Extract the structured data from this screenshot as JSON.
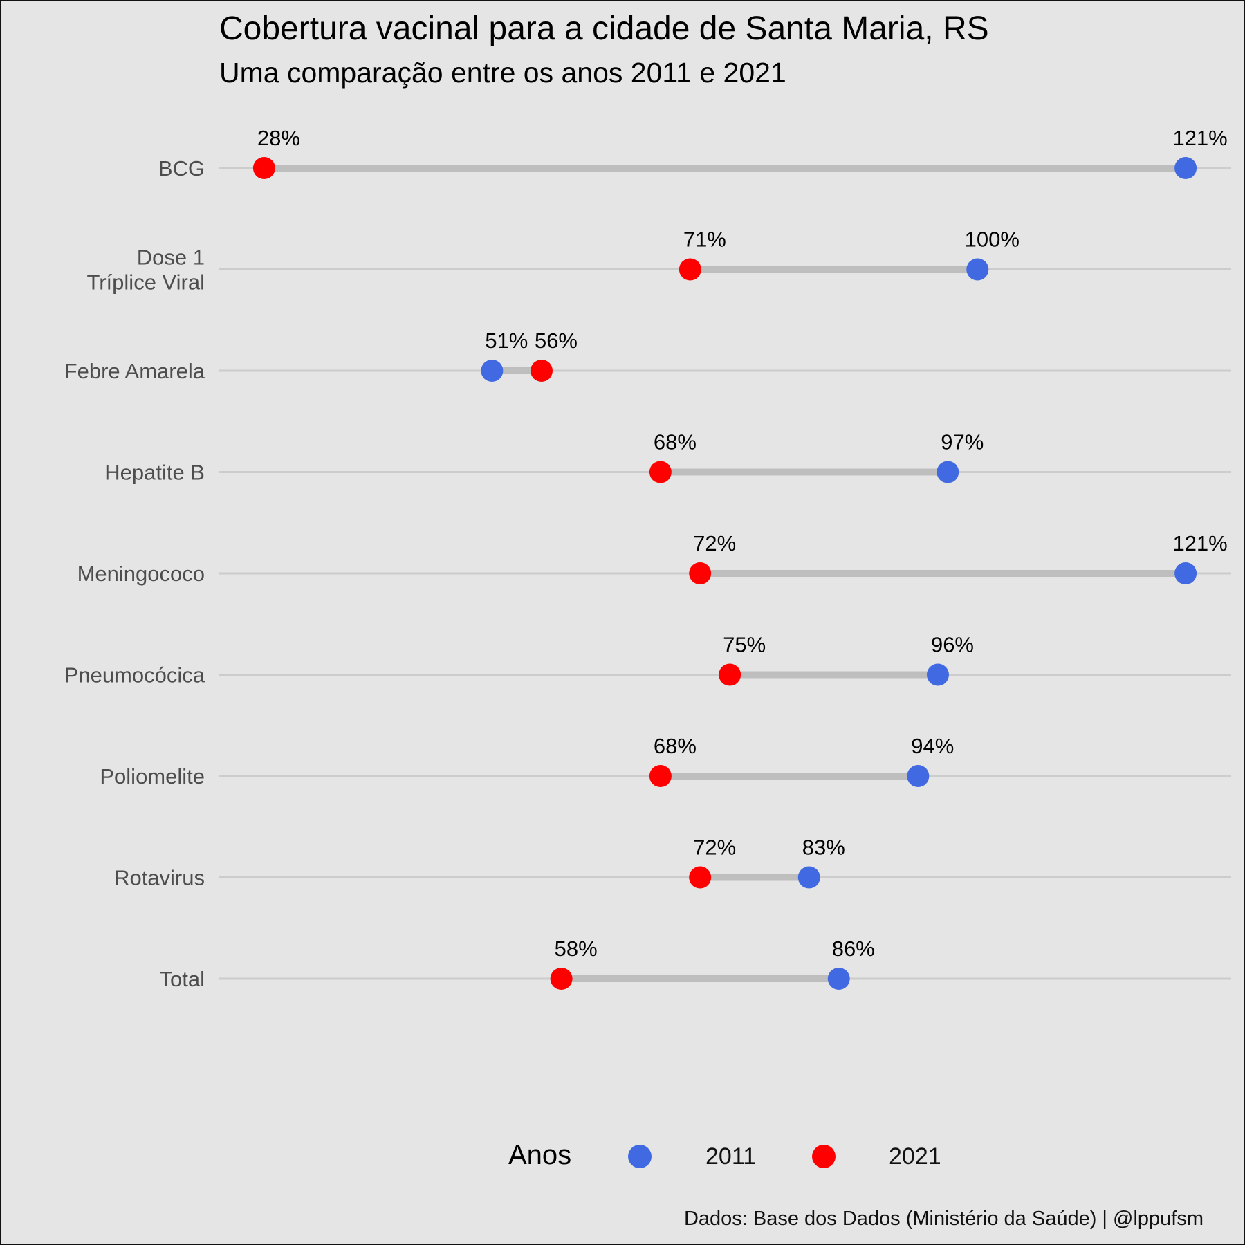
{
  "title": "Cobertura vacinal para a cidade de Santa Maria, RS",
  "subtitle": "Uma comparação entre os anos 2011 e 2021",
  "caption": "Dados: Base dos Dados (Ministério da Saúde) | @lppufsm",
  "legend": {
    "title": "Anos",
    "items": [
      {
        "label": "2011",
        "color": "#4169e1"
      },
      {
        "label": "2021",
        "color": "#ff0000"
      }
    ],
    "placement": "bottom"
  },
  "colors": {
    "background": "#e5e5e5",
    "segment": "#bebebe",
    "gridline": "#cccccc",
    "axis_text": "#4d4d4d"
  },
  "chart_data": {
    "type": "dumbbell",
    "categories": [
      "BCG",
      "Dose 1\nTríplice Viral",
      "Febre Amarela",
      "Hepatite B",
      "Meningococo",
      "Pneumocócica",
      "Poliomelite",
      "Rotavirus",
      "Total"
    ],
    "series": [
      {
        "name": "2011",
        "color": "#4169e1",
        "values": [
          121,
          100,
          51,
          97,
          121,
          96,
          94,
          83,
          86
        ]
      },
      {
        "name": "2021",
        "color": "#ff0000",
        "values": [
          28,
          71,
          56,
          68,
          72,
          75,
          68,
          72,
          58
        ]
      }
    ],
    "value_labels_2011": [
      "121%",
      "100%",
      "51%",
      "97%",
      "121%",
      "96%",
      "94%",
      "83%",
      "86%"
    ],
    "value_labels_2021": [
      "28%",
      "71%",
      "56%",
      "68%",
      "72%",
      "75%",
      "68%",
      "72%",
      "58%"
    ],
    "xlim": [
      23.4,
      125.6
    ],
    "x_axis_shown": false,
    "grid": "horizontal-major"
  }
}
